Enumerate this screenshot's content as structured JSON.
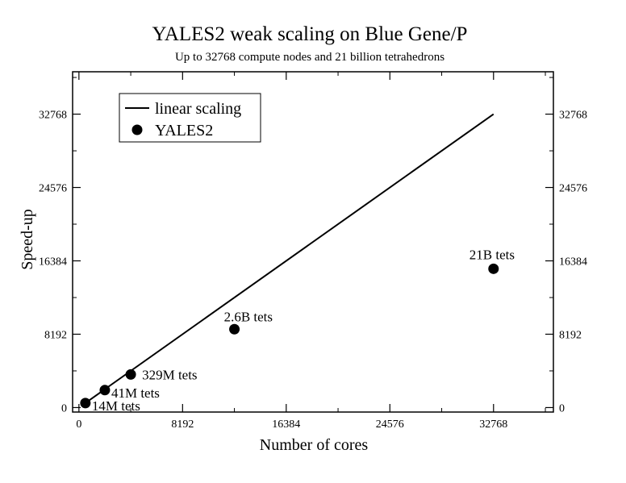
{
  "chart_data": {
    "type": "scatter",
    "title": "YALES2 weak scaling on Blue Gene/P",
    "subtitle": "Up to 32768 compute nodes and 21 billion tetrahedrons",
    "xlabel": "Number of cores",
    "ylabel": "Speed-up",
    "xlim": [
      -500,
      37500
    ],
    "ylim": [
      -500,
      37500
    ],
    "x_ticks": [
      0,
      8192,
      16384,
      24576,
      32768
    ],
    "y_ticks": [
      0,
      8192,
      16384,
      24576,
      32768
    ],
    "x_tick_labels": [
      "0",
      "8192",
      "16384",
      "24576",
      "32768"
    ],
    "y_tick_labels": [
      "0",
      "8192",
      "16384",
      "24576",
      "32768"
    ],
    "grid": false,
    "legend": {
      "placement": "top-left",
      "entries": [
        "linear scaling",
        "YALES2"
      ]
    },
    "series": [
      {
        "name": "linear scaling",
        "type": "line",
        "color": "#000000",
        "x": [
          512,
          32768
        ],
        "y": [
          512,
          32768
        ]
      },
      {
        "name": "YALES2",
        "type": "scatter",
        "color": "#000000",
        "x": [
          512,
          2048,
          4096,
          12288,
          32768
        ],
        "y": [
          500,
          1950,
          3700,
          8750,
          15500
        ],
        "labels": [
          "14M tets",
          "41M tets",
          "329M tets",
          "2.6B tets",
          "21B tets"
        ]
      }
    ]
  }
}
